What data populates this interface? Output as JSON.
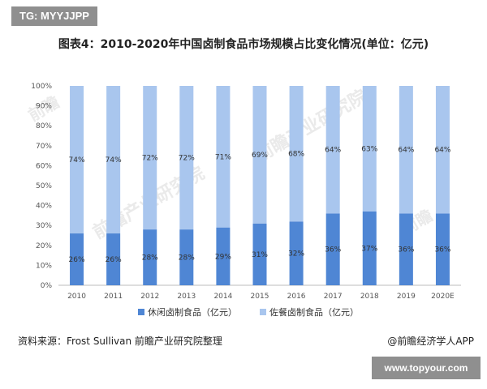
{
  "header": {
    "tag": "TG: MYYJJPP",
    "title": "图表4：2010-2020年中国卤制食品市场规模占比变化情况(单位：亿元)"
  },
  "footer": {
    "source": "资料来源：Frost Sullivan 前瞻产业研究院整理",
    "credit": "@前瞻经济学人APP",
    "site": "www.topyour.com"
  },
  "watermarks": [
    "前瞻",
    "前瞻产业研究院",
    "前瞻产业研究院",
    "前瞻"
  ],
  "colors": {
    "series1": "#4f86d4",
    "series2": "#a9c6ee"
  },
  "chart_data": {
    "type": "bar",
    "stacked": true,
    "normalized": true,
    "categories": [
      "2010",
      "2011",
      "2012",
      "2013",
      "2014",
      "2015",
      "2016",
      "2017",
      "2018",
      "2019",
      "2020E"
    ],
    "series": [
      {
        "name": "休闲卤制食品（亿元）",
        "values": [
          26,
          26,
          28,
          28,
          29,
          31,
          32,
          36,
          37,
          36,
          36
        ],
        "labels": [
          "26%",
          "26%",
          "28%",
          "28%",
          "29%",
          "31%",
          "32%",
          "36%",
          "37%",
          "36%",
          "36%"
        ]
      },
      {
        "name": "佐餐卤制食品（亿元）",
        "values": [
          74,
          74,
          72,
          72,
          71,
          69,
          68,
          64,
          63,
          64,
          64
        ],
        "labels": [
          "74%",
          "74%",
          "72%",
          "72%",
          "71%",
          "69%",
          "68%",
          "64%",
          "63%",
          "64%",
          "64%"
        ]
      }
    ],
    "yticks": [
      "0%",
      "10%",
      "20%",
      "30%",
      "40%",
      "50%",
      "60%",
      "70%",
      "80%",
      "90%",
      "100%"
    ],
    "ylim": [
      0,
      100
    ],
    "legend": "bottom",
    "grid": false
  }
}
